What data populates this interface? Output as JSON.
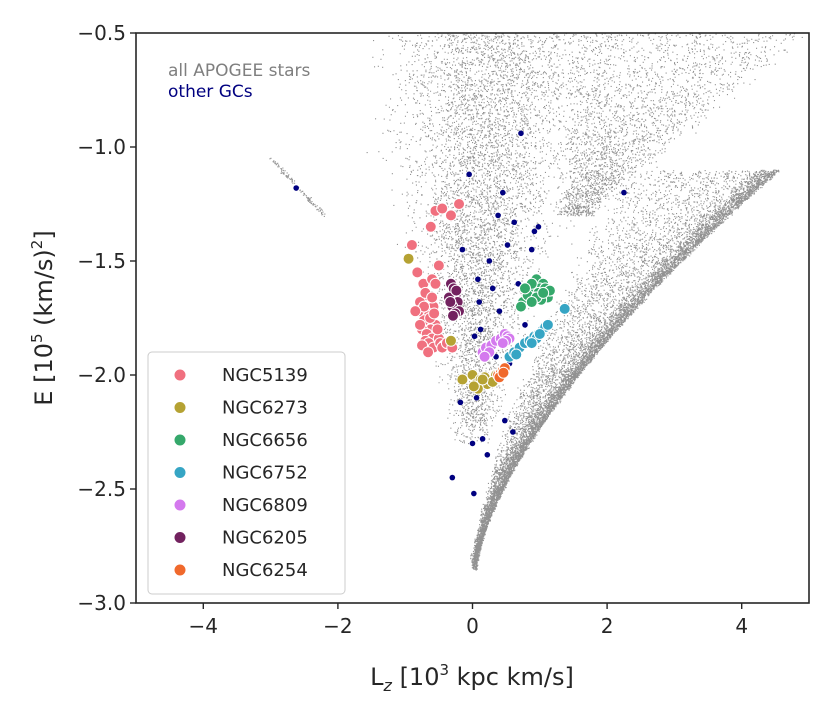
{
  "chart_data": {
    "type": "scatter",
    "xlabel": {
      "base": "L",
      "sub": "z",
      "pre": " [10",
      "sup": "3",
      "post": " kpc km/s]"
    },
    "ylabel": {
      "pre": "E [10",
      "sup": "5",
      "post": " (km/s)",
      "sup2": "2",
      "end": "]"
    },
    "xlim": [
      -5,
      5
    ],
    "ylim": [
      -3.0,
      -0.5
    ],
    "x_ticks": [
      -4,
      -2,
      0,
      2,
      4
    ],
    "x_tick_labels": [
      "−4",
      "−2",
      "0",
      "2",
      "4"
    ],
    "y_ticks": [
      -3.0,
      -2.5,
      -2.0,
      -1.5,
      -1.0,
      -0.5
    ],
    "y_tick_labels": [
      "−3.0",
      "−2.5",
      "−2.0",
      "−1.5",
      "−1.0",
      "−0.5"
    ],
    "grid": false,
    "legend_position": "lower-left",
    "annotations": [
      {
        "text": "all APOGEE stars",
        "color": "#7f7f7f"
      },
      {
        "text": "other GCs",
        "color": "#000080"
      }
    ],
    "background_color": "#7f7f7f",
    "other_gc_color": "#000080",
    "other_gcs": {
      "x": [
        -2.62,
        0.72,
        2.25,
        -0.05,
        0.45,
        0.98,
        0.38,
        0.62,
        0.52,
        0.92,
        -0.15,
        0.88,
        0.25,
        0.08,
        0.68,
        0.85,
        0.3,
        0.1,
        0.4,
        0.78,
        0.12,
        0.03,
        0.35,
        0.55,
        0.2,
        0.06,
        -0.18,
        0.48,
        0.6,
        0.15,
        0.0,
        -0.3,
        1.12,
        0.02,
        0.22
      ],
      "y": [
        -1.18,
        -0.94,
        -1.2,
        -1.12,
        -1.2,
        -1.35,
        -1.3,
        -1.33,
        -1.43,
        -1.37,
        -1.45,
        -1.45,
        -1.5,
        -1.58,
        -1.6,
        -1.62,
        -1.62,
        -1.68,
        -1.72,
        -1.78,
        -1.8,
        -1.83,
        -1.92,
        -1.95,
        -2.05,
        -2.1,
        -2.12,
        -2.2,
        -2.25,
        -2.28,
        -2.3,
        -2.45,
        -1.66,
        -2.52,
        -2.35
      ]
    },
    "series": [
      {
        "name": "NGC5139",
        "color": "#f0707f",
        "x": [
          -0.55,
          -0.45,
          -0.2,
          -0.32,
          -0.62,
          -0.9,
          -0.82,
          -0.73,
          -0.6,
          -0.5,
          -0.68,
          -0.78,
          -0.58,
          -0.7,
          -0.65,
          -0.72,
          -0.8,
          -0.55,
          -0.62,
          -0.75,
          -0.68,
          -0.6,
          -0.7,
          -0.78,
          -0.65,
          -0.58,
          -0.72,
          -0.63,
          -0.7,
          -0.6,
          -0.55,
          -0.5,
          -0.48,
          -0.42,
          -0.75,
          -0.66,
          -0.57,
          -0.85,
          -0.45,
          -0.52,
          -0.38,
          -0.3
        ],
        "y": [
          -1.28,
          -1.27,
          -1.25,
          -1.3,
          -1.35,
          -1.43,
          -1.55,
          -1.6,
          -1.58,
          -1.52,
          -1.65,
          -1.68,
          -1.7,
          -1.72,
          -1.74,
          -1.76,
          -1.72,
          -1.78,
          -1.8,
          -1.8,
          -1.82,
          -1.84,
          -1.85,
          -1.78,
          -1.86,
          -1.88,
          -1.7,
          -1.75,
          -1.64,
          -1.66,
          -1.6,
          -1.84,
          -1.86,
          -1.87,
          -1.87,
          -1.9,
          -1.73,
          -1.72,
          -1.88,
          -1.8,
          -1.86,
          -1.88
        ]
      },
      {
        "name": "NGC6273",
        "color": "#b5a233",
        "x": [
          -0.95,
          -0.32,
          -0.15,
          0.0,
          0.05,
          0.12,
          0.22,
          0.28,
          0.35,
          0.08,
          0.18,
          0.02,
          0.3,
          0.15
        ],
        "y": [
          -1.49,
          -1.85,
          -2.02,
          -2.0,
          -2.04,
          -2.02,
          -2.04,
          -2.02,
          -2.0,
          -2.06,
          -2.01,
          -2.05,
          -2.03,
          -2.02
        ]
      },
      {
        "name": "NGC6656",
        "color": "#35a86b",
        "x": [
          0.95,
          1.05,
          1.0,
          0.9,
          0.85,
          0.8,
          0.75,
          0.88,
          0.98,
          1.08,
          1.12,
          1.02,
          0.92,
          0.82,
          0.72,
          1.15,
          0.95,
          1.05,
          0.88,
          0.78
        ],
        "y": [
          -1.58,
          -1.6,
          -1.62,
          -1.64,
          -1.62,
          -1.66,
          -1.68,
          -1.6,
          -1.64,
          -1.62,
          -1.66,
          -1.67,
          -1.66,
          -1.65,
          -1.7,
          -1.63,
          -1.66,
          -1.64,
          -1.68,
          -1.62
        ]
      },
      {
        "name": "NGC6752",
        "color": "#36a5c4",
        "x": [
          0.55,
          0.62,
          0.7,
          0.78,
          0.85,
          0.92,
          0.98,
          1.05,
          1.08,
          1.12,
          1.37,
          0.95,
          0.65,
          0.88,
          1.0
        ],
        "y": [
          -1.92,
          -1.9,
          -1.88,
          -1.86,
          -1.85,
          -1.83,
          -1.82,
          -1.8,
          -1.79,
          -1.78,
          -1.71,
          -1.84,
          -1.91,
          -1.86,
          -1.82
        ]
      },
      {
        "name": "NGC6809",
        "color": "#d479ee",
        "x": [
          0.15,
          0.2,
          0.28,
          0.35,
          0.42,
          0.48,
          0.52,
          0.55,
          0.25,
          0.5,
          0.18,
          0.45
        ],
        "y": [
          -1.9,
          -1.88,
          -1.87,
          -1.85,
          -1.84,
          -1.82,
          -1.83,
          -1.84,
          -1.9,
          -1.85,
          -1.92,
          -1.86
        ]
      },
      {
        "name": "NGC6205",
        "color": "#72225f",
        "x": [
          -0.32,
          -0.28,
          -0.25,
          -0.35,
          -0.22,
          -0.3,
          -0.2,
          -0.26,
          -0.33,
          -0.24,
          -0.29
        ],
        "y": [
          -1.6,
          -1.62,
          -1.65,
          -1.66,
          -1.68,
          -1.7,
          -1.72,
          -1.73,
          -1.68,
          -1.63,
          -1.74
        ]
      },
      {
        "name": "NGC6254",
        "color": "#f0692c",
        "x": [
          0.38,
          0.42,
          0.45,
          0.48,
          0.4,
          0.46
        ],
        "y": [
          -2.0,
          -1.99,
          -1.98,
          -1.97,
          -2.01,
          -1.99
        ]
      }
    ]
  }
}
